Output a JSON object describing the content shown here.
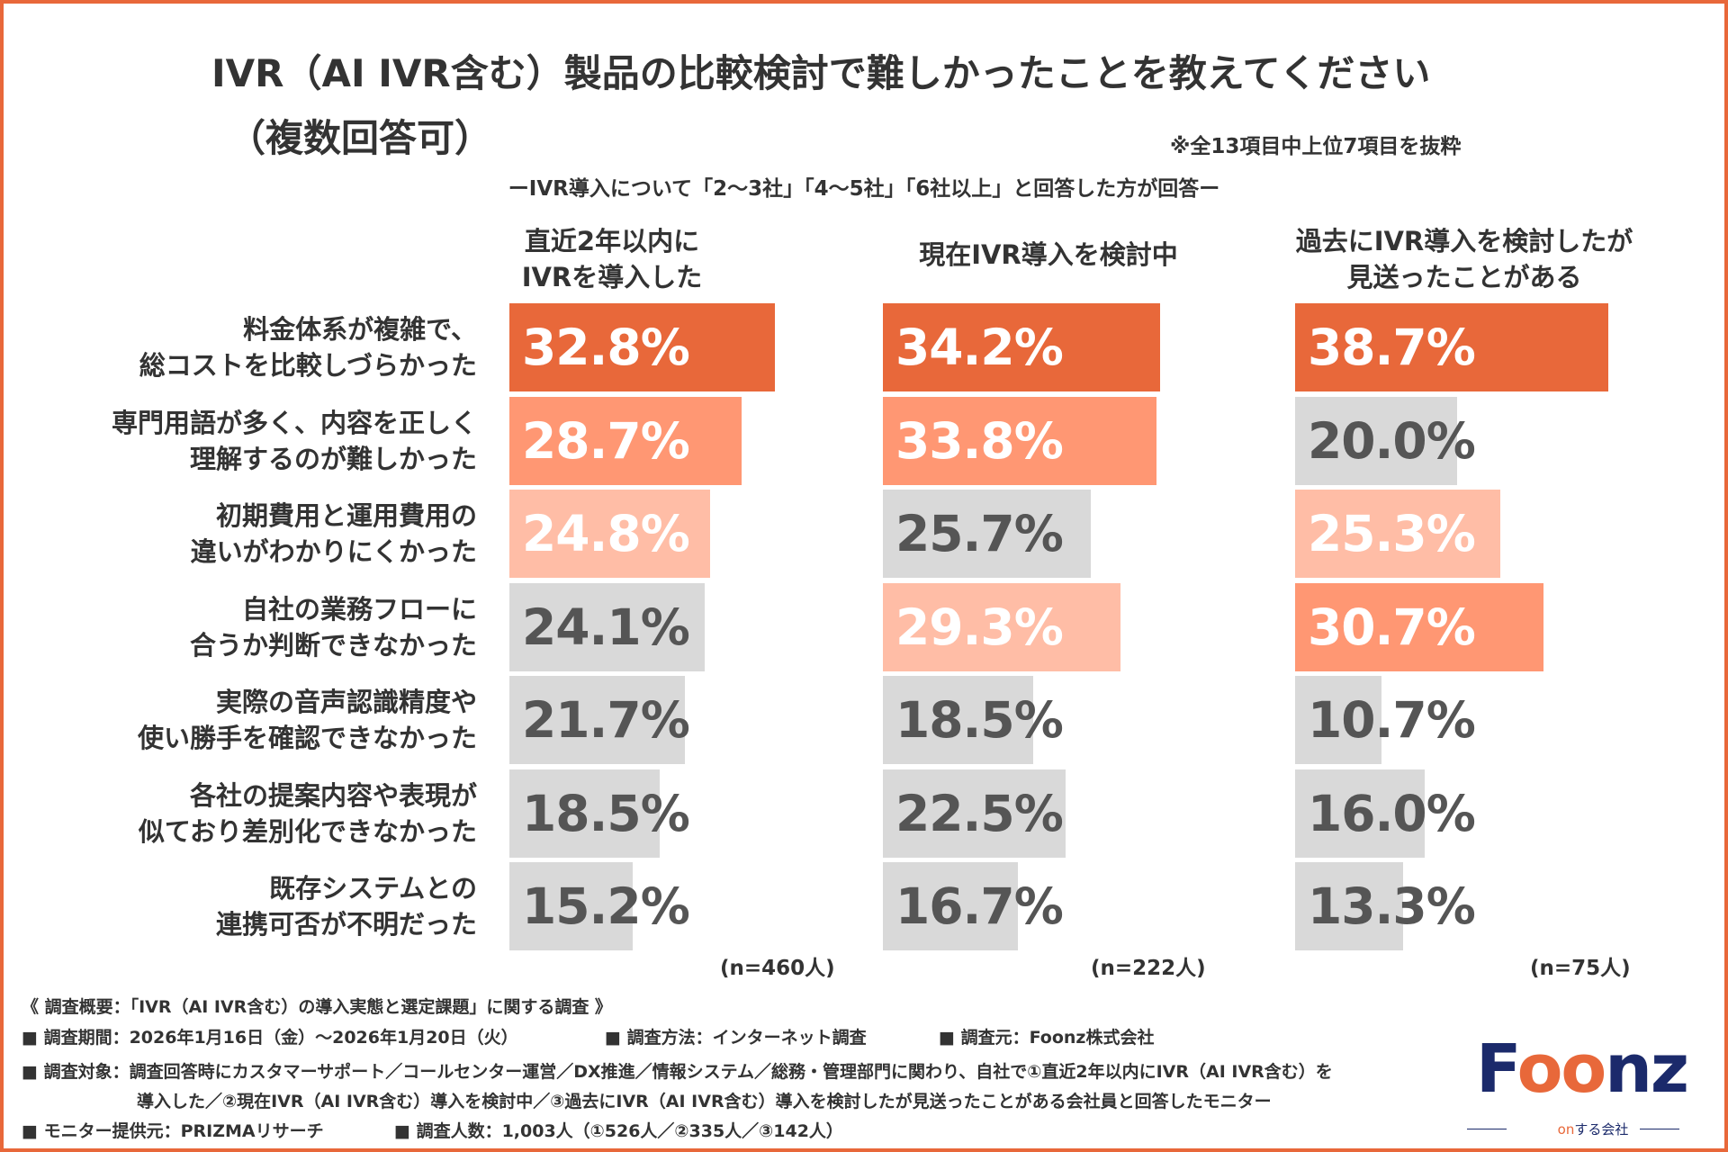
{
  "chart_data": {
    "type": "bar",
    "title": "IVR（AI IVR含む）製品の比較検討で難しかったことを教えてください",
    "title_line2": "（複数回答可）",
    "note": "※全13項目中上位7項目を抜粋",
    "subtitle": "ーIVR導入について「2～3社」「4～5社」「6社以上」と回答した方が回答ー",
    "categories": [
      "料金体系が複雑で、\n総コストを比較しづらかった",
      "専門用語が多く、内容を正しく\n理解するのが難しかった",
      "初期費用と運用費用の\n違いがわかりにくかった",
      "自社の業務フローに\n合うか判断できなかった",
      "実際の音声認識精度や\n使い勝手を確認できなかった",
      "各社の提案内容や表現が\n似ており差別化できなかった",
      "既存システムとの\n連携可否が不明だった"
    ],
    "series": [
      {
        "name": "直近2年以内に\nIVRを導入した",
        "n": "(n=460人)",
        "values": [
          32.8,
          28.7,
          24.8,
          24.1,
          21.7,
          18.5,
          15.2
        ],
        "labels": [
          "32.8%",
          "28.7%",
          "24.8%",
          "24.1%",
          "21.7%",
          "18.5%",
          "15.2%"
        ]
      },
      {
        "name": "現在IVR導入を検討中",
        "n": "(n=222人)",
        "values": [
          34.2,
          33.8,
          25.7,
          29.3,
          18.5,
          22.5,
          16.7
        ],
        "labels": [
          "34.2%",
          "33.8%",
          "25.7%",
          "29.3%",
          "18.5%",
          "22.5%",
          "16.7%"
        ]
      },
      {
        "name": "過去にIVR導入を検討したが\n見送ったことがある",
        "n": "(n=75人)",
        "values": [
          38.7,
          20.0,
          25.3,
          30.7,
          10.7,
          16.0,
          13.3
        ],
        "labels": [
          "38.7%",
          "20.0%",
          "25.3%",
          "30.7%",
          "10.7%",
          "16.0%",
          "13.3%"
        ]
      }
    ],
    "highlight_colors": [
      "#E8683A",
      "#FF9773",
      "#FFBDA6"
    ],
    "default_color": "#D9D9D9",
    "xlim": [
      0,
      40
    ]
  },
  "footer": {
    "line1": "《 調査概要：「IVR（AI IVR含む）の導入実態と選定課題」に関する調査 》",
    "line2a": "■ 調査期間：2026年1月16日（金）～2026年1月20日（火）",
    "line2b": "■ 調査方法：インターネット調査",
    "line2c": "■ 調査元：Foonz株式会社",
    "line3": "■ 調査対象：調査回答時にカスタマーサポート／コールセンター運営／DX推進／情報システム／総務・管理部門に関わり、自社で①直近2年以内にIVR（AI IVR含む）を",
    "line4": "導入した／②現在IVR（AI IVR含む）導入を検討中／③過去にIVR（AI IVR含む）導入を検討したが見送ったことがある会社員と回答したモニター",
    "line5a": "■ モニター提供元：PRIZMAリサーチ",
    "line5b": "■ 調査人数：1,003人（①526人／②335人／③142人）"
  },
  "logo": {
    "f": "F",
    "oo": "oo",
    "nz": "nz",
    "sub_on": "on",
    "sub_rest": "する会社"
  }
}
